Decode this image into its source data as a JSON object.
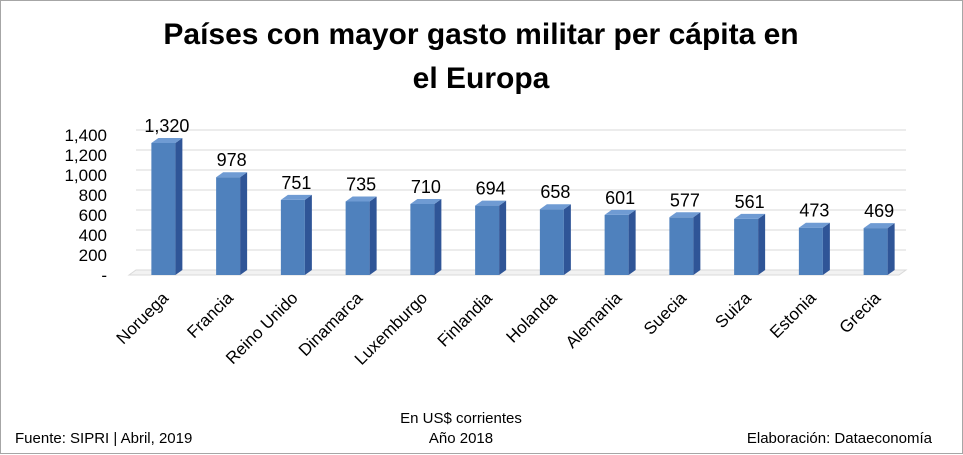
{
  "title_line1": "Países con mayor gasto militar per cápita en",
  "title_line2": "el Europa",
  "footer": {
    "source": "Fuente: SIPRI | Abril, 2019",
    "units": "En US$ corrientes",
    "year": "Año 2018",
    "credit": "Elaboración: Dataeconomía"
  },
  "colors": {
    "bar_front": "#4f81bd",
    "bar_side": "#2f5597",
    "bar_top": "#6f9bd3",
    "grid": "#d9d9d9"
  },
  "chart_data": {
    "type": "bar",
    "categories": [
      "Noruega",
      "Francia",
      "Reino Unido",
      "Dinamarca",
      "Luxemburgo",
      "Finlandia",
      "Holanda",
      "Alemania",
      "Suecia",
      "Suiza",
      "Estonia",
      "Grecia"
    ],
    "values": [
      1320,
      978,
      751,
      735,
      710,
      694,
      658,
      601,
      577,
      561,
      473,
      469
    ],
    "value_labels": [
      "1,320",
      "978",
      "751",
      "735",
      "710",
      "694",
      "658",
      "601",
      "577",
      "561",
      "473",
      "469"
    ],
    "ylim": [
      0,
      1400
    ],
    "yticks": [
      0,
      200,
      400,
      600,
      800,
      1000,
      1200,
      1400
    ],
    "ytick_labels": [
      "-",
      "200",
      "400",
      "600",
      "800",
      "1,000",
      "1,200",
      "1,400"
    ],
    "grid": true,
    "legend": "none"
  }
}
